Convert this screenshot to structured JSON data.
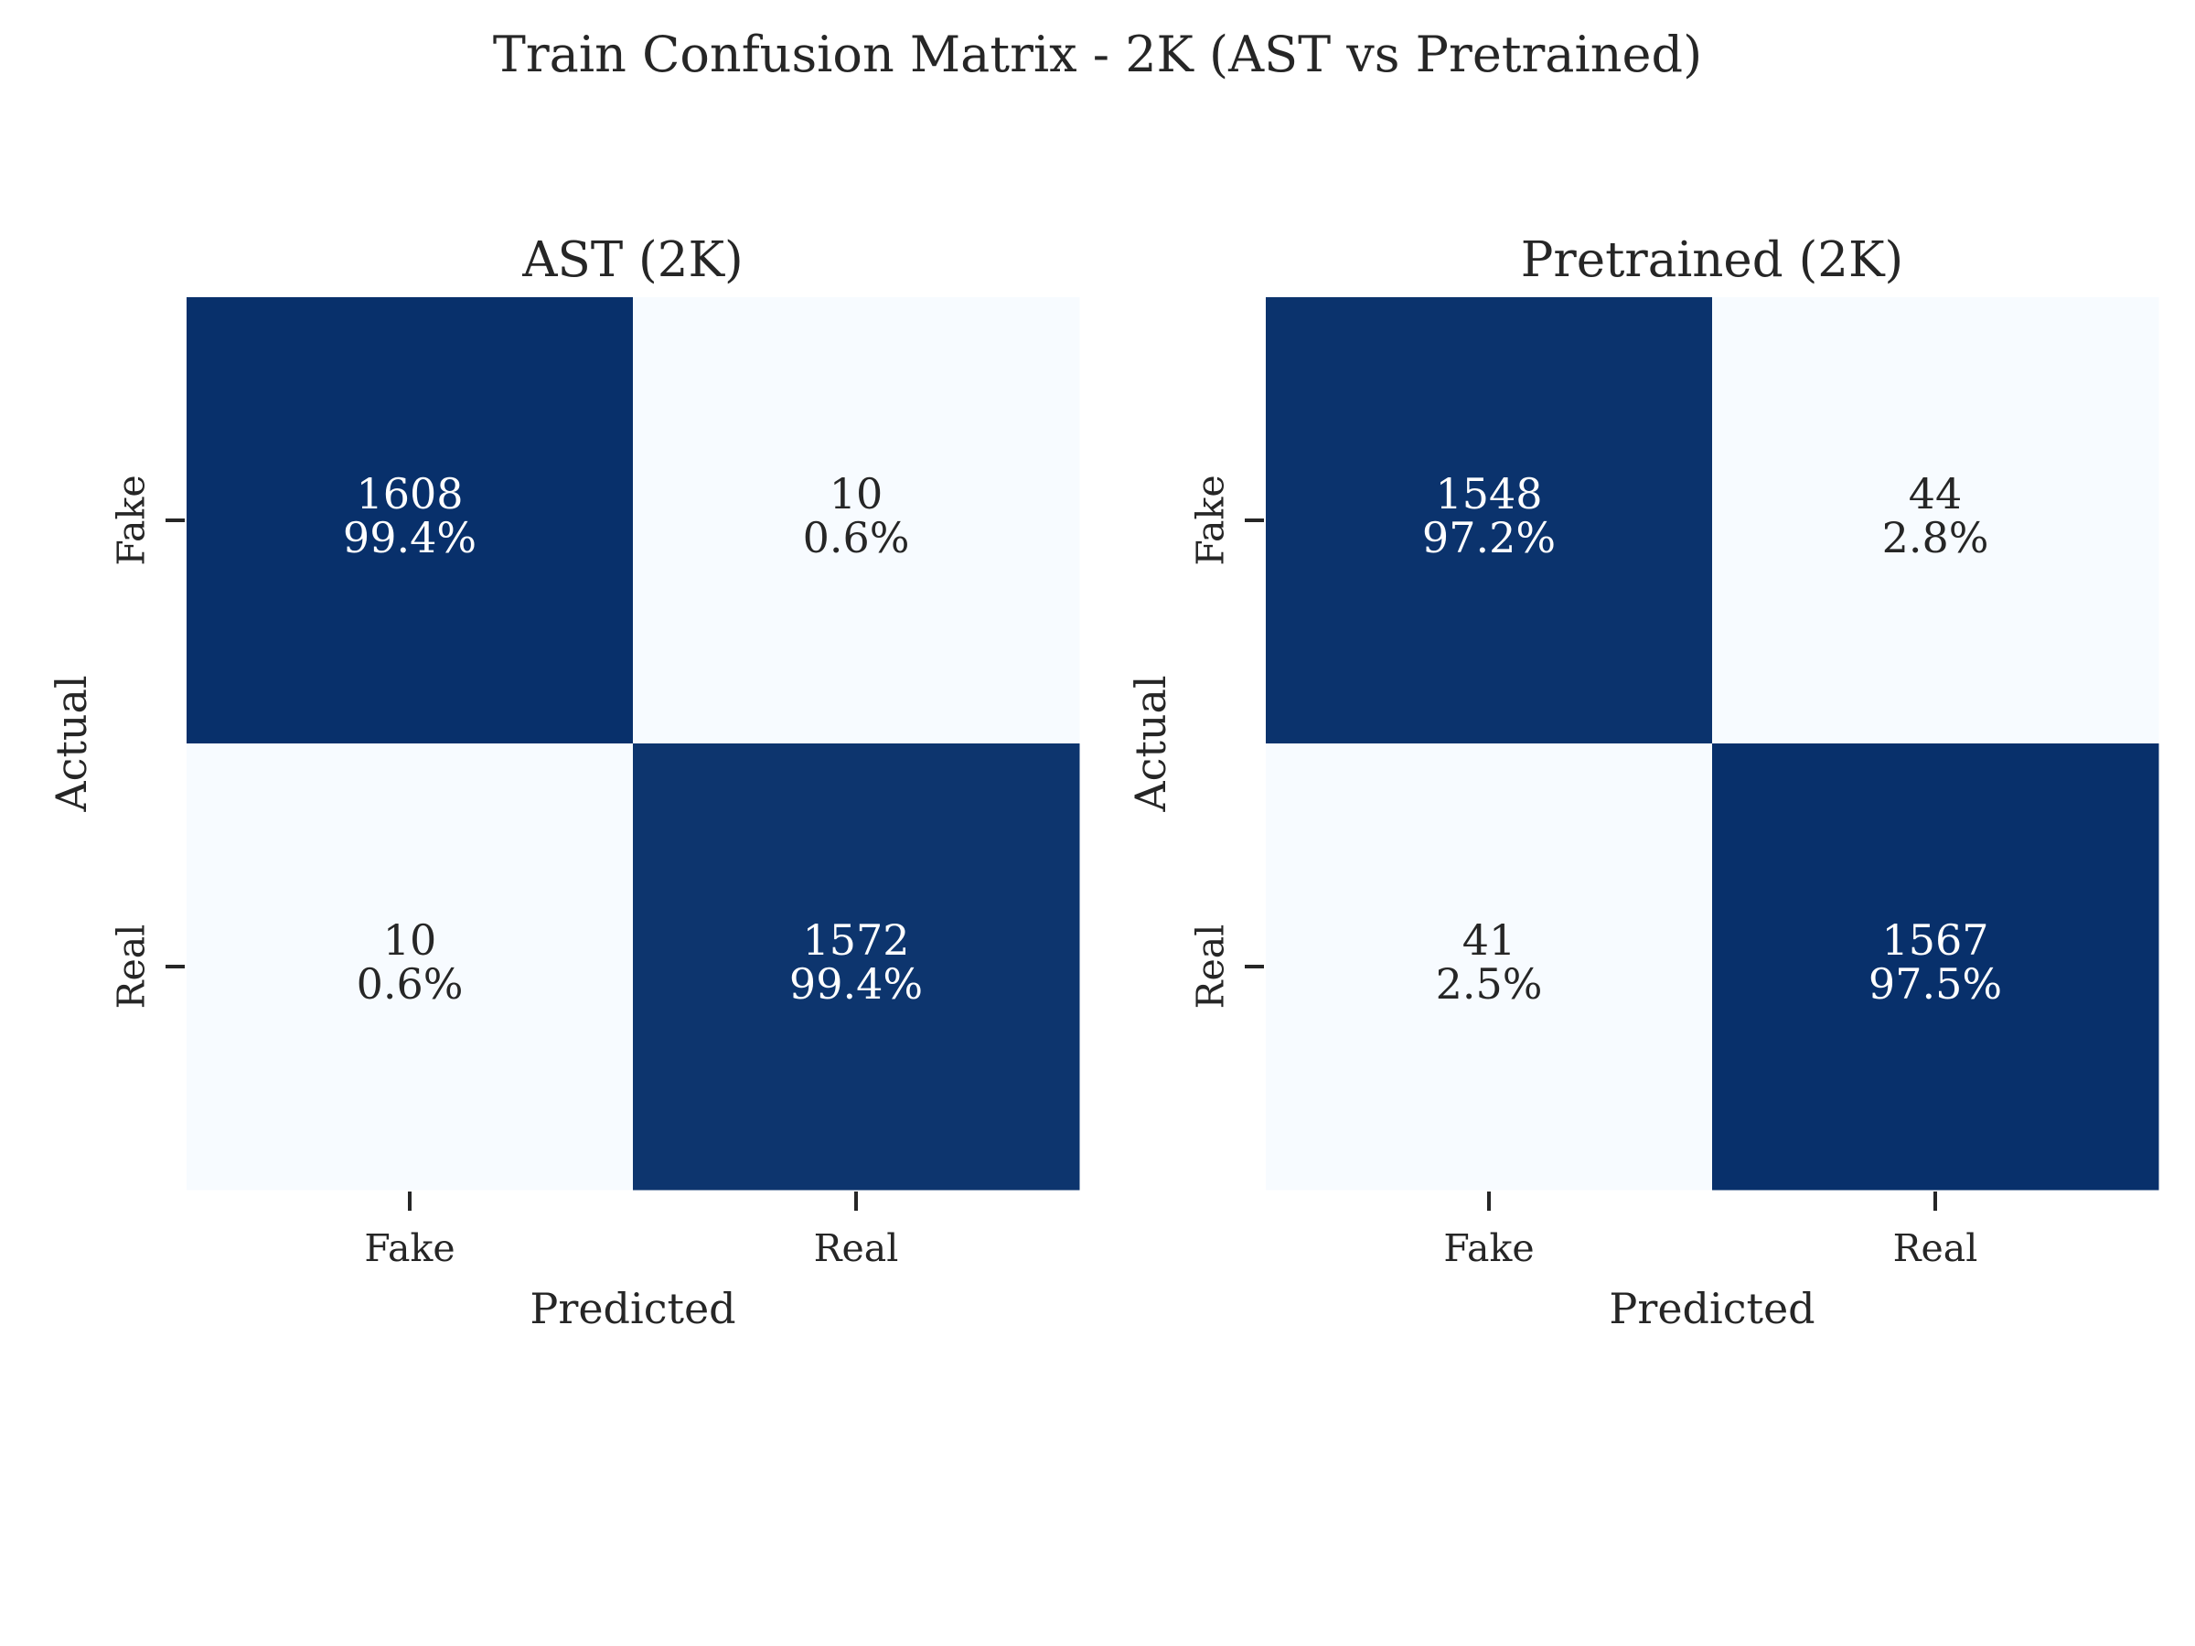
{
  "figure": {
    "suptitle": "Train Confusion Matrix - 2K (AST vs Pretrained)"
  },
  "colors": {
    "high": "#08306b",
    "low": "#f7fbff",
    "text_on_dark": "#ffffff",
    "text_on_light": "#262626",
    "axis_text": "#262626"
  },
  "chart_data": [
    {
      "type": "heatmap",
      "title": "AST (2K)",
      "xlabel": "Predicted",
      "ylabel": "Actual",
      "x_categories": [
        "Fake",
        "Real"
      ],
      "y_categories": [
        "Fake",
        "Real"
      ],
      "values": [
        [
          1608,
          10
        ],
        [
          10,
          1572
        ]
      ],
      "percentages": [
        [
          "99.4%",
          "0.6%"
        ],
        [
          "0.6%",
          "99.4%"
        ]
      ],
      "colorbar": false
    },
    {
      "type": "heatmap",
      "title": "Pretrained (2K)",
      "xlabel": "Predicted",
      "ylabel": "Actual",
      "x_categories": [
        "Fake",
        "Real"
      ],
      "y_categories": [
        "Fake",
        "Real"
      ],
      "values": [
        [
          1548,
          44
        ],
        [
          41,
          1567
        ]
      ],
      "percentages": [
        [
          "97.2%",
          "2.8%"
        ],
        [
          "2.5%",
          "97.5%"
        ]
      ],
      "colorbar": false
    }
  ]
}
